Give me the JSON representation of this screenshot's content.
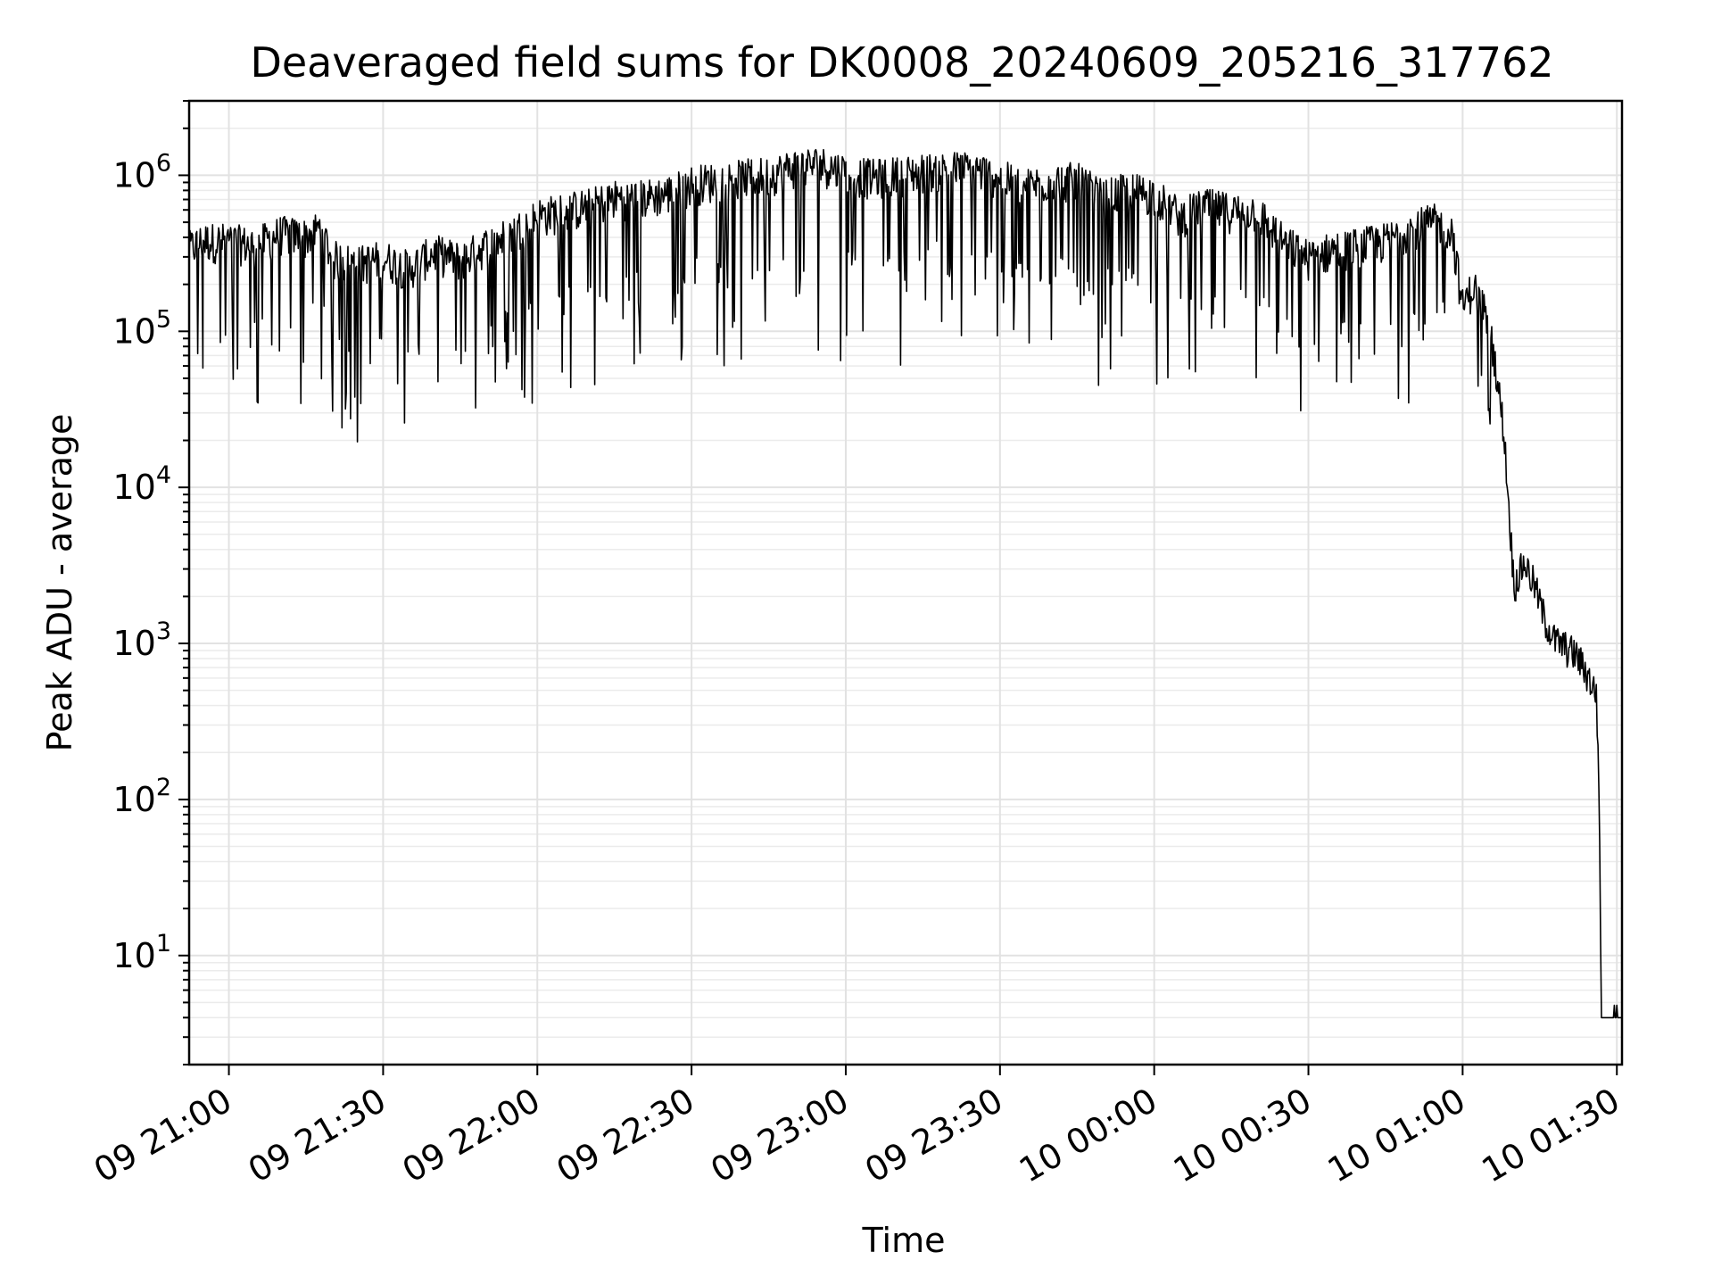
{
  "chart_data": {
    "type": "line",
    "title": "Deaveraged field sums for DK0008_20240609_205216_317762",
    "xlabel": "Time",
    "ylabel": "Peak ADU - average",
    "x_scale": "time",
    "y_scale": "log",
    "xlim": [
      "2024-06-09 20:52:16",
      "2024-06-10 01:31:00"
    ],
    "ylim": [
      2,
      3000000
    ],
    "grid": true,
    "legend": "none",
    "line_color": "#000000",
    "x_ticks": [
      {
        "value": "2024-06-09 21:00:00",
        "label": "09 21:00"
      },
      {
        "value": "2024-06-09 21:30:00",
        "label": "09 21:30"
      },
      {
        "value": "2024-06-09 22:00:00",
        "label": "09 22:00"
      },
      {
        "value": "2024-06-09 22:30:00",
        "label": "09 22:30"
      },
      {
        "value": "2024-06-09 23:00:00",
        "label": "09 23:00"
      },
      {
        "value": "2024-06-09 23:30:00",
        "label": "09 23:30"
      },
      {
        "value": "2024-06-10 00:00:00",
        "label": "10 00:00"
      },
      {
        "value": "2024-06-10 00:30:00",
        "label": "10 00:30"
      },
      {
        "value": "2024-06-10 01:00:00",
        "label": "10 01:00"
      },
      {
        "value": "2024-06-10 01:30:00",
        "label": "10 01:30"
      }
    ],
    "y_ticks": [
      {
        "value": 10,
        "base": "10",
        "exp": "1"
      },
      {
        "value": 100,
        "base": "10",
        "exp": "2"
      },
      {
        "value": 1000,
        "base": "10",
        "exp": "3"
      },
      {
        "value": 10000,
        "base": "10",
        "exp": "4"
      },
      {
        "value": 100000,
        "base": "10",
        "exp": "5"
      },
      {
        "value": 1000000,
        "base": "10",
        "exp": "6"
      }
    ],
    "series": [
      {
        "x": [
          "2024-06-09 20:52:16",
          "2024-06-09 20:55:00",
          "2024-06-09 21:00:00",
          "2024-06-09 21:05:00",
          "2024-06-09 21:10:00",
          "2024-06-09 21:15:00",
          "2024-06-09 21:18:00",
          "2024-06-09 21:20:00",
          "2024-06-09 21:25:00",
          "2024-06-09 21:30:00",
          "2024-06-09 21:35:00",
          "2024-06-09 21:40:00",
          "2024-06-09 21:45:00",
          "2024-06-09 21:50:00",
          "2024-06-09 21:55:00",
          "2024-06-09 22:00:00",
          "2024-06-09 22:05:00",
          "2024-06-09 22:10:00",
          "2024-06-09 22:15:00",
          "2024-06-09 22:20:00",
          "2024-06-09 22:25:00",
          "2024-06-09 22:30:00",
          "2024-06-09 22:35:00",
          "2024-06-09 22:40:00",
          "2024-06-09 22:45:00",
          "2024-06-09 22:50:00",
          "2024-06-09 22:55:00",
          "2024-06-09 23:00:00",
          "2024-06-09 23:05:00",
          "2024-06-09 23:10:00",
          "2024-06-09 23:15:00",
          "2024-06-09 23:20:00",
          "2024-06-09 23:25:00",
          "2024-06-09 23:30:00",
          "2024-06-09 23:35:00",
          "2024-06-09 23:40:00",
          "2024-06-09 23:45:00",
          "2024-06-09 23:50:00",
          "2024-06-09 23:55:00",
          "2024-06-10 00:00:00",
          "2024-06-10 00:05:00",
          "2024-06-10 00:10:00",
          "2024-06-10 00:15:00",
          "2024-06-10 00:20:00",
          "2024-06-10 00:25:00",
          "2024-06-10 00:30:00",
          "2024-06-10 00:35:00",
          "2024-06-10 00:40:00",
          "2024-06-10 00:45:00",
          "2024-06-10 00:50:00",
          "2024-06-10 00:55:00",
          "2024-06-10 00:58:00",
          "2024-06-10 01:00:00",
          "2024-06-10 01:02:00",
          "2024-06-10 01:04:00",
          "2024-06-10 01:06:00",
          "2024-06-10 01:08:00",
          "2024-06-10 01:10:00",
          "2024-06-10 01:12:00",
          "2024-06-10 01:14:00",
          "2024-06-10 01:16:00",
          "2024-06-10 01:18:00",
          "2024-06-10 01:20:00",
          "2024-06-10 01:22:00",
          "2024-06-10 01:24:00",
          "2024-06-10 01:26:00",
          "2024-06-10 01:26:30",
          "2024-06-10 01:27:00",
          "2024-06-10 01:27:30",
          "2024-06-10 01:28:00",
          "2024-06-10 01:29:00",
          "2024-06-10 01:30:00",
          "2024-06-10 01:31:00"
        ],
        "y": [
          400000,
          450000,
          450000,
          420000,
          500000,
          480000,
          550000,
          350000,
          320000,
          350000,
          300000,
          380000,
          340000,
          420000,
          500000,
          650000,
          700000,
          750000,
          850000,
          850000,
          900000,
          1050000,
          1100000,
          1150000,
          1200000,
          1350000,
          1400000,
          1250000,
          1150000,
          1200000,
          1250000,
          1300000,
          1300000,
          1150000,
          1000000,
          1100000,
          1100000,
          850000,
          950000,
          900000,
          650000,
          750000,
          700000,
          700000,
          450000,
          350000,
          400000,
          420000,
          450000,
          550000,
          600000,
          520000,
          170000,
          230000,
          180000,
          80000,
          25000,
          2500,
          3500,
          2500,
          1500,
          1100,
          1000,
          900,
          700,
          500,
          150,
          4,
          4,
          4,
          4,
          4,
          4
        ]
      }
    ]
  }
}
